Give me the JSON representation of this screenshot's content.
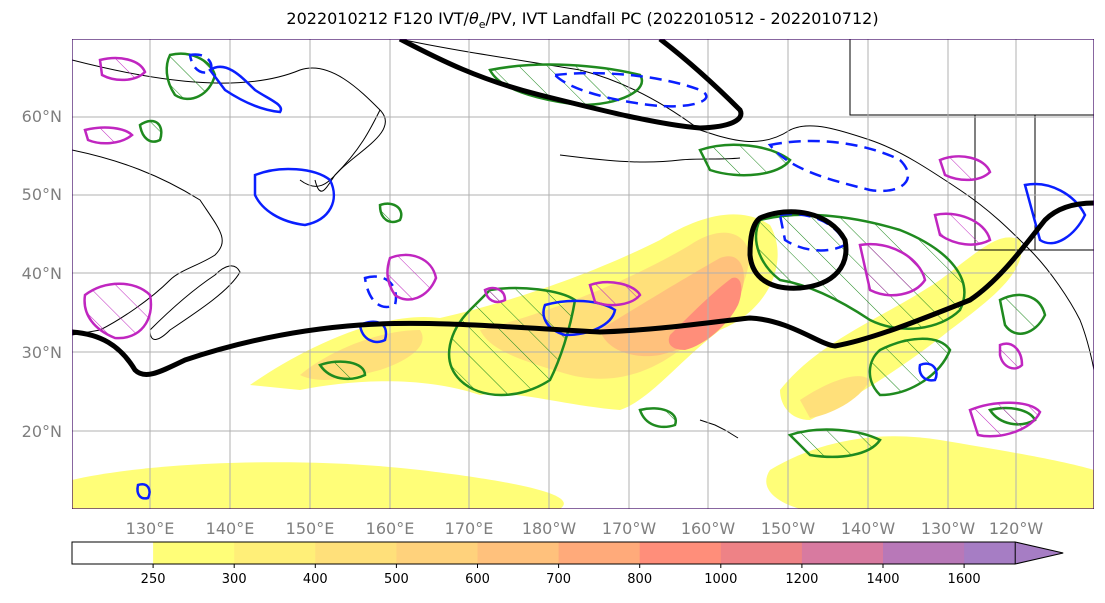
{
  "title": {
    "prefix": "2022010212 F120 IVT/",
    "theta_symbol": "θ",
    "theta_sub": "e",
    "suffix": "/PV, IVT Landfall PC (2022010512 - 2022010712)"
  },
  "map": {
    "projection": "PlateCarree",
    "extent_lon": [
      120,
      252
    ],
    "extent_lat": [
      10,
      70
    ],
    "lat_labels": [
      "20°N",
      "30°N",
      "40°N",
      "50°N",
      "60°N"
    ],
    "lon_labels": [
      "130°E",
      "140°E",
      "150°E",
      "160°E",
      "170°E",
      "180°W",
      "170°W",
      "160°W",
      "150°W",
      "140°W",
      "130°W",
      "120°W"
    ],
    "gridlines": true,
    "features": [
      "coastlines",
      "borders",
      "states"
    ]
  },
  "contours": {
    "ivt_fill": "IVT shaded",
    "thick_black": "PV / jet contour",
    "green": "theta-e contour",
    "blue_solid": "positive anomaly",
    "blue_dashed": "negative anomaly",
    "magenta": "PV contour (hatched)"
  },
  "colorbar": {
    "levels": [
      "250",
      "300",
      "400",
      "500",
      "600",
      "700",
      "800",
      "1000",
      "1200",
      "1400",
      "1600"
    ],
    "colors": [
      "#ffffff",
      "#fffe78",
      "#ffef78",
      "#ffe07a",
      "#ffd27c",
      "#ffc17c",
      "#ffaa7a",
      "#ff8e7a",
      "#ee8286",
      "#d87aa0",
      "#b878b8",
      "#a67dc4"
    ],
    "extend": "max"
  },
  "colors": {
    "thick_black": "#000000",
    "green": "#1f8a1f",
    "blue": "#0a1fff",
    "magenta": "#c026c0",
    "grid": "#b0b0b0"
  }
}
